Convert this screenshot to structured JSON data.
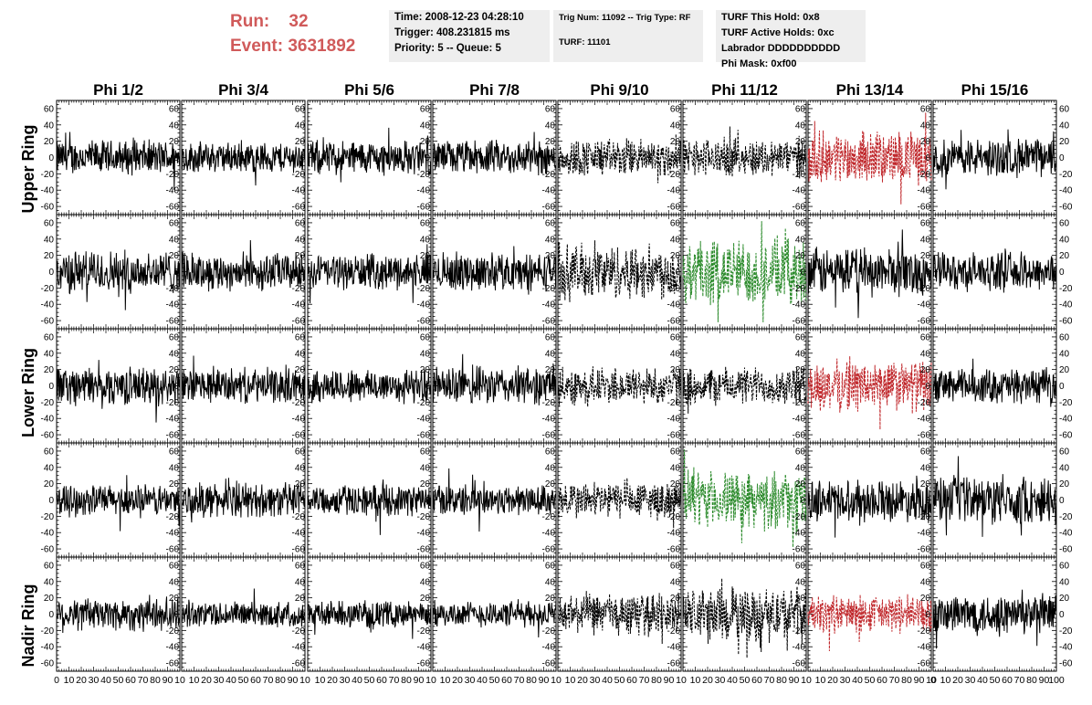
{
  "header": {
    "run_label": "Run:",
    "run_value": "32",
    "event_label": "Event:",
    "event_value": "3631892"
  },
  "info_time": {
    "time": "Time: 2008-12-23 04:28:10",
    "trigger": "Trigger: 408.231815 ms",
    "priority": "Priority: 5 -- Queue: 5"
  },
  "info_trig": {
    "trig": "Trig Num: 11092 -- Trig Type: RF",
    "turf": "TURF: 11101"
  },
  "info_turf": {
    "hold": "TURF This Hold: 0x8",
    "active": "TURF Active Holds: 0xc",
    "labrador": "Labrador DDDDDDDDDD",
    "phimask": "Phi Mask: 0xf00"
  },
  "colors": {
    "header_red": "#d05a5a",
    "info_bg": "#eeeeee",
    "trace_black": "#000000",
    "trace_red": "#c0282c",
    "trace_green": "#2a8a2a"
  },
  "chart_data": {
    "type": "line",
    "col_titles": [
      "Phi 1/2",
      "Phi 3/4",
      "Phi 5/6",
      "Phi 7/8",
      "Phi 9/10",
      "Phi 11/12",
      "Phi 13/14",
      "Phi 15/16"
    ],
    "row_titles": [
      "Upper Ring",
      "Lower Ring",
      "Nadir Ring"
    ],
    "ylim": [
      -70,
      70
    ],
    "xlim": [
      0,
      100
    ],
    "yticks": [
      -60,
      -40,
      -20,
      0,
      20,
      40,
      60
    ],
    "xticks": [
      0,
      10,
      20,
      30,
      40,
      50,
      60,
      70,
      80,
      90,
      100
    ],
    "xtick_labels_first": [
      "0",
      "10",
      "20",
      "30",
      "40",
      "50",
      "60",
      "70",
      "80",
      "90",
      "10"
    ],
    "xtick_labels_mid": [
      "10",
      "20",
      "30",
      "40",
      "50",
      "60",
      "70",
      "80",
      "90",
      "10"
    ],
    "xtick_labels_last": [
      "0",
      "10",
      "20",
      "30",
      "40",
      "50",
      "60",
      "70",
      "80",
      "90",
      "100"
    ],
    "panel_styles": [
      [
        "solid",
        "solid",
        "solid",
        "solid",
        "dashed",
        "dashed",
        "red",
        "solid"
      ],
      [
        "solid",
        "solid",
        "solid",
        "solid",
        "dashed",
        "green",
        "solid",
        "solid"
      ],
      [
        "solid",
        "solid",
        "solid",
        "solid",
        "dashed",
        "dashed",
        "red",
        "solid"
      ],
      [
        "solid",
        "solid",
        "solid",
        "solid",
        "dashed",
        "green",
        "solid",
        "solid"
      ],
      [
        "solid",
        "solid",
        "solid",
        "solid",
        "dashed",
        "dashed",
        "red",
        "solid"
      ]
    ],
    "panel_amplitude": [
      [
        20,
        18,
        20,
        20,
        22,
        22,
        30,
        22
      ],
      [
        25,
        22,
        20,
        22,
        32,
        38,
        28,
        22
      ],
      [
        22,
        20,
        20,
        22,
        22,
        22,
        30,
        20
      ],
      [
        18,
        20,
        18,
        18,
        22,
        32,
        24,
        28
      ],
      [
        20,
        15,
        15,
        15,
        24,
        32,
        22,
        24
      ]
    ]
  }
}
